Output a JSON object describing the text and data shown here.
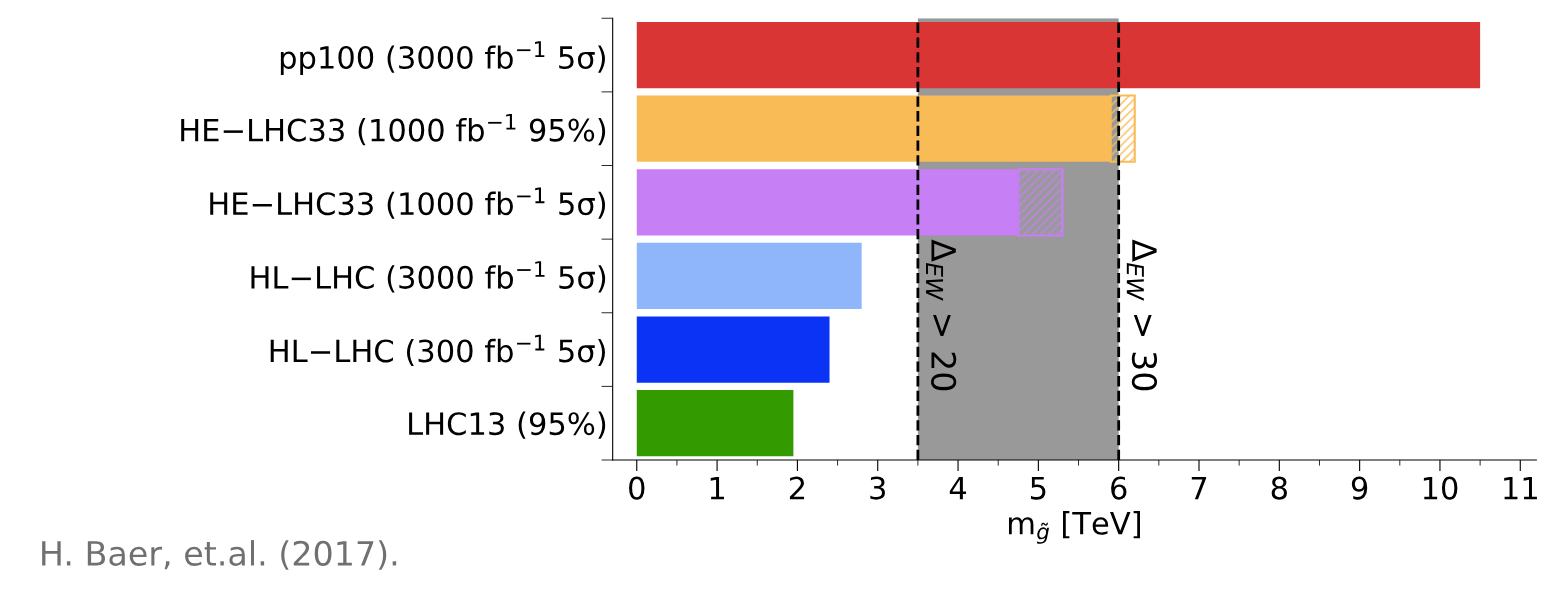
{
  "chart_data": {
    "type": "bar",
    "orientation": "horizontal",
    "stacked": true,
    "categories": [
      "pp100 (3000 fb$^{−1}$ 5σ)",
      "HE−LHC33 (1000 fb$^{−1}$ 95%)",
      "HE−LHC33 (1000 fb$^{−1}$ 5σ)",
      "HL−LHC (3000 fb$^{−1}$ 5σ)",
      "HL−LHC (300 fb$^{−1}$ 5σ)",
      "LHC13 (95%)"
    ],
    "series": [
      {
        "colors": [
          "#d93535",
          "#f9bb55",
          "#c77ff5",
          "#8fb5fb",
          "#0a33f5",
          "#339a00"
        ],
        "values": [
          10.5,
          5.9,
          4.75,
          2.8,
          2.4,
          1.95
        ]
      },
      {
        "colors": [
          "#d93535",
          "#f9bb55",
          "#c77ff5",
          "#8fb5fb",
          "#0a33f5",
          "#339a00"
        ],
        "values": [
          null,
          0.3,
          0.55,
          null,
          null,
          null
        ]
      }
    ],
    "xlabel": "m$_{g̃}$ [TeV]",
    "xlim": [
      -0.3,
      11.2
    ],
    "xticks": [
      0,
      1,
      2,
      3,
      4,
      5,
      6,
      7,
      8,
      9,
      10,
      11
    ],
    "bands": [
      {
        "axis": "x",
        "from": 3.5,
        "to": 6,
        "color": "#7f7f7f"
      }
    ],
    "ref_lines": [
      {
        "axis": "x",
        "value": 3.5,
        "label": "Δ$_{EW}$ > 20",
        "line_style": "dashed"
      },
      {
        "axis": "x",
        "value": 6,
        "label": "Δ$_{EW}$ > 30",
        "line_style": "dashed"
      }
    ],
    "annotations": [
      "H. Baer, et.al. (2017)."
    ],
    "grid": false,
    "legend": false
  }
}
